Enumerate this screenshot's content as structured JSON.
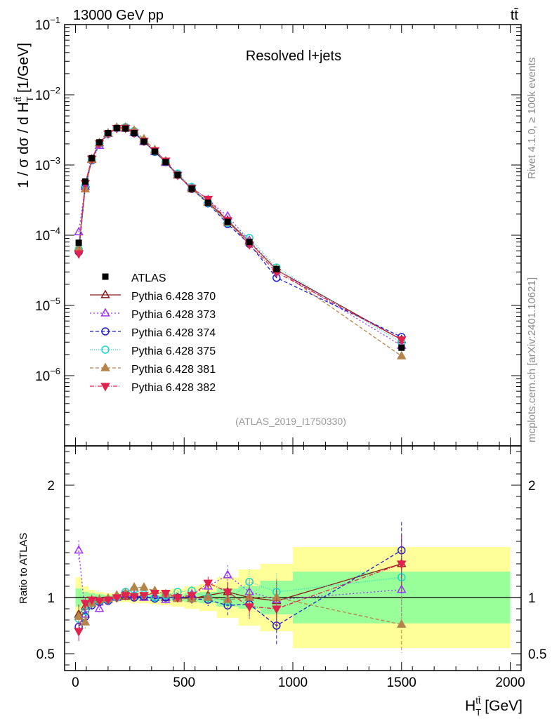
{
  "header": {
    "energy_label": "13000 GeV pp",
    "process_label": "tt̄"
  },
  "side": {
    "rivet_label": "Rivet 4.1.0, ≥ 100k events",
    "mcplots_label": "mcplots.cern.ch [arXiv:2401.10621]"
  },
  "chart_data": {
    "type": "scatter",
    "title": "Resolved l+jets",
    "analysis_id": "(ATLAS_2019_I1750330)",
    "ylabel": "1 / σ dσ / d H",
    "ylabel_sub": "T",
    "ylabel_sup": "tt̄",
    "ylabel_unit": " [1/GeV]",
    "xlabel": "H",
    "xlabel_sub": "T",
    "xlabel_sup": "tt̄",
    "xlabel_unit": " [GeV]",
    "ratio_ylabel": "Ratio to ATLAS",
    "xlim": [
      -50,
      2050
    ],
    "ylim_exp": [
      -7,
      -1
    ],
    "ratio_ylim": [
      0.35,
      2.35
    ],
    "x_ticks": [
      "0",
      "500",
      "1000",
      "1500",
      "2000"
    ],
    "x_tick_values": [
      0,
      500,
      1000,
      1500,
      2000
    ],
    "y_ticks": [
      "10−6",
      "10−5",
      "10−4",
      "10−3",
      "10−2",
      "10−1"
    ],
    "y_tick_base": "10",
    "y_tick_exps": [
      "−6",
      "−5",
      "−4",
      "−3",
      "−2",
      "−1"
    ],
    "ratio_ticks": [
      "0.5",
      "1",
      "2"
    ],
    "ratio_tick_values": [
      0.5,
      1,
      2
    ],
    "x": [
      15,
      45,
      75,
      110,
      150,
      190,
      230,
      270,
      315,
      365,
      415,
      470,
      535,
      610,
      700,
      800,
      925,
      1500
    ],
    "bins_low": [
      0,
      30,
      60,
      90,
      130,
      170,
      210,
      250,
      290,
      340,
      390,
      440,
      500,
      570,
      650,
      750,
      850,
      1000
    ],
    "bins_high": [
      30,
      60,
      90,
      130,
      170,
      210,
      250,
      290,
      340,
      390,
      440,
      500,
      570,
      650,
      750,
      850,
      1000,
      2000
    ],
    "reference": {
      "name": "ATLAS",
      "color": "#000000",
      "values": [
        7.8e-05,
        0.00058,
        0.00125,
        0.0021,
        0.00285,
        0.00335,
        0.0033,
        0.00285,
        0.00215,
        0.00155,
        0.0011,
        0.00072,
        0.00046,
        0.00029,
        0.000155,
        8e-05,
        3.3e-05,
        2.5e-06
      ],
      "band_stat_half": [
        0.08,
        0.05,
        0.04,
        0.03,
        0.02,
        0.02,
        0.02,
        0.02,
        0.02,
        0.02,
        0.03,
        0.03,
        0.04,
        0.05,
        0.08,
        0.1,
        0.15,
        0.23
      ],
      "band_total_half": [
        0.18,
        0.1,
        0.07,
        0.05,
        0.04,
        0.04,
        0.04,
        0.05,
        0.05,
        0.06,
        0.07,
        0.08,
        0.1,
        0.12,
        0.18,
        0.25,
        0.3,
        0.45
      ]
    },
    "series": [
      {
        "name": "Pythia 6.428 370",
        "color": "#8b1a1a",
        "marker": "triangle-open",
        "dash": "",
        "ratio": [
          0.85,
          0.92,
          0.97,
          0.98,
          0.99,
          1.0,
          1.01,
          1.02,
          1.0,
          1.0,
          1.0,
          1.0,
          0.99,
          1.02,
          1.05,
          1.0,
          0.97,
          1.3
        ]
      },
      {
        "name": "Pythia 6.428 373",
        "color": "#9b30ff",
        "marker": "triangle-open",
        "dash": "2,3",
        "ratio": [
          1.42,
          0.85,
          0.95,
          0.9,
          0.98,
          1.0,
          1.03,
          1.02,
          1.0,
          1.0,
          0.98,
          0.99,
          1.03,
          1.1,
          1.2,
          1.05,
          0.98,
          1.07
        ]
      },
      {
        "name": "Pythia 6.428 374",
        "color": "#1f1fcc",
        "marker": "circle-open",
        "dash": "5,3",
        "ratio": [
          0.74,
          0.83,
          0.93,
          0.96,
          0.97,
          1.0,
          1.03,
          1.0,
          1.01,
          0.99,
          1.0,
          1.0,
          0.99,
          0.98,
          0.93,
          0.94,
          0.75,
          1.42
        ]
      },
      {
        "name": "Pythia 6.428 375",
        "color": "#18d8c8",
        "marker": "circle-open",
        "dash": "1,2",
        "ratio": [
          0.81,
          0.88,
          0.95,
          0.97,
          0.98,
          1.0,
          1.05,
          1.07,
          1.03,
          1.0,
          1.02,
          1.05,
          1.06,
          1.0,
          0.97,
          1.14,
          1.05,
          1.18
        ]
      },
      {
        "name": "Pythia 6.428 381",
        "color": "#b5844a",
        "marker": "triangle-filled",
        "dash": "5,3",
        "ratio": [
          0.83,
          0.78,
          0.95,
          0.98,
          0.99,
          1.02,
          1.04,
          1.09,
          1.09,
          1.06,
          1.03,
          0.99,
          0.99,
          1.0,
          0.98,
          1.0,
          1.0,
          0.76
        ]
      },
      {
        "name": "Pythia 6.428 382",
        "color": "#e0224e",
        "marker": "triangle-down-filled",
        "dash": "6,2,1,2",
        "ratio": [
          0.7,
          0.95,
          0.98,
          0.97,
          0.98,
          1.0,
          1.02,
          1.01,
          1.02,
          1.04,
          1.04,
          1.0,
          1.02,
          1.13,
          1.05,
          0.92,
          0.9,
          1.3
        ]
      }
    ]
  }
}
